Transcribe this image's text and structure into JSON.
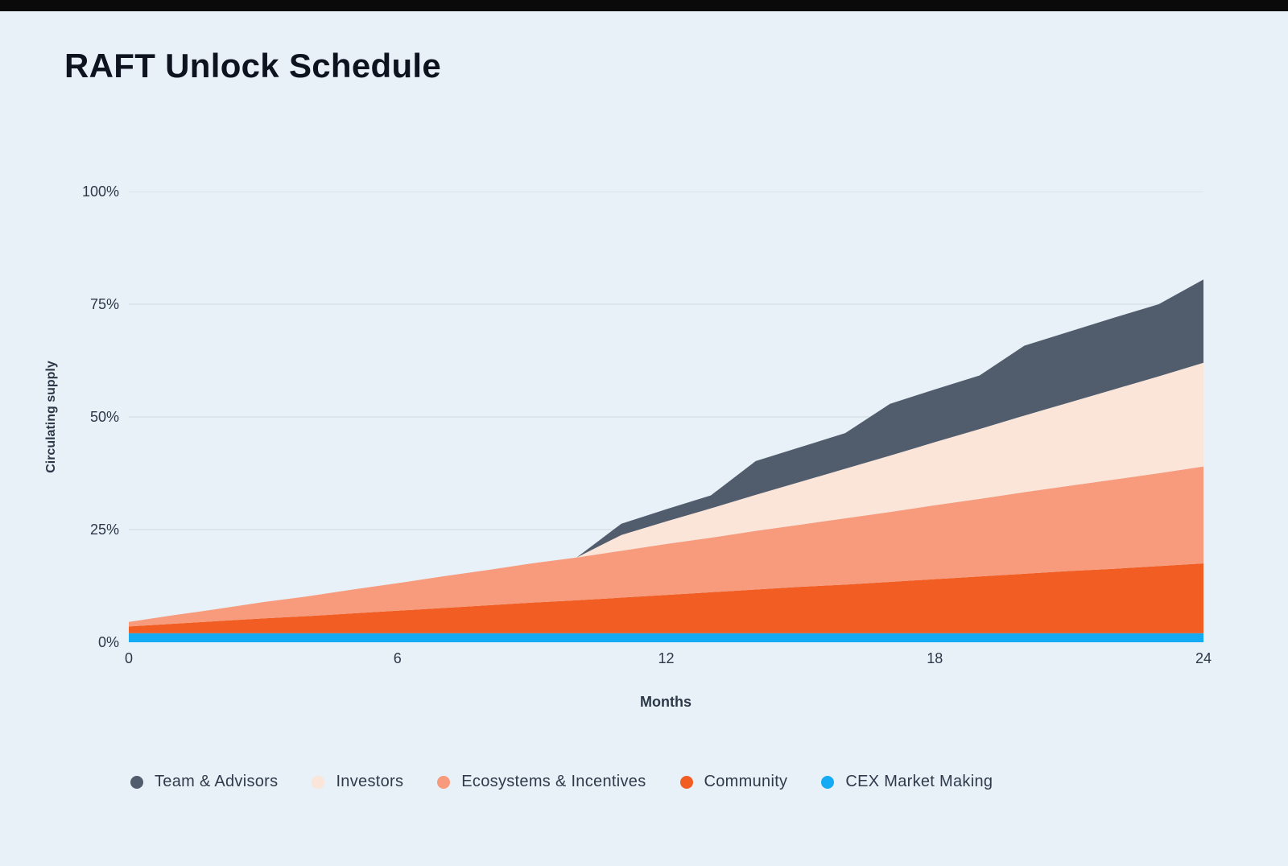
{
  "page": {
    "title": "RAFT Unlock Schedule"
  },
  "chart_data": {
    "type": "area",
    "stacked": true,
    "title": "RAFT Unlock Schedule",
    "xlabel": "Months",
    "ylabel": "Circulating supply",
    "xlim": [
      0,
      24
    ],
    "ylim": [
      0,
      100
    ],
    "grid": "horizontal",
    "legend_position": "bottom",
    "values_unit": "percent of total supply per series (stacked band thickness)",
    "x": [
      0,
      1,
      2,
      3,
      4,
      5,
      6,
      7,
      8,
      9,
      10,
      11,
      12,
      13,
      14,
      15,
      16,
      17,
      18,
      19,
      20,
      21,
      22,
      23,
      24
    ],
    "x_ticks": [
      0,
      6,
      12,
      18,
      24
    ],
    "y_ticks": [
      {
        "label": "0%",
        "value": 0
      },
      {
        "label": "25%",
        "value": 25
      },
      {
        "label": "50%",
        "value": 50
      },
      {
        "label": "75%",
        "value": 75
      },
      {
        "label": "100%",
        "value": 100
      }
    ],
    "series": [
      {
        "id": "cex",
        "name": "CEX Market Making",
        "color": "#14ABF4",
        "values": [
          2,
          2,
          2,
          2,
          2,
          2,
          2,
          2,
          2,
          2,
          2,
          2,
          2,
          2,
          2,
          2,
          2,
          2,
          2,
          2,
          2,
          2,
          2,
          2,
          2
        ]
      },
      {
        "id": "community",
        "name": "Community",
        "color": "#F15D22",
        "values": [
          1.5,
          2.1,
          2.7,
          3.3,
          3.8,
          4.4,
          5,
          5.6,
          6.2,
          6.8,
          7.3,
          7.9,
          8.5,
          9.1,
          9.7,
          10.3,
          10.8,
          11.4,
          12,
          12.6,
          13.2,
          13.8,
          14.3,
          14.9,
          15.5
        ]
      },
      {
        "id": "ecosystems",
        "name": "Ecosystems & Incentives",
        "color": "#F79B7C",
        "values": [
          1,
          1.9,
          2.7,
          3.6,
          4.4,
          5.3,
          6.1,
          7,
          7.8,
          8.7,
          9.5,
          10.4,
          11.3,
          12.1,
          13,
          13.8,
          14.7,
          15.5,
          16.4,
          17.2,
          18.1,
          18.9,
          19.8,
          20.6,
          21.5
        ]
      },
      {
        "id": "investors",
        "name": "Investors",
        "color": "#FBE4D8",
        "values": [
          0,
          0,
          0,
          0,
          0,
          0,
          0,
          0,
          0,
          0,
          0,
          3.5,
          5,
          6.5,
          8,
          9.5,
          11,
          12.5,
          14,
          15.5,
          17,
          18.5,
          20,
          21.5,
          23
        ]
      },
      {
        "id": "team",
        "name": "Team & Advisors",
        "color": "#515D6D",
        "values": [
          0,
          0,
          0,
          0,
          0,
          0,
          0,
          0,
          0,
          0,
          0,
          2.5,
          2.7,
          2.9,
          7.5,
          7.7,
          7.9,
          11.5,
          11.7,
          11.9,
          15.5,
          15.7,
          15.9,
          16,
          18.5
        ]
      }
    ]
  },
  "colors": {
    "background": "#E8F0F8",
    "top_strip": "#0A0A0A",
    "grid": "#D5DDE5",
    "axis_text": "#2C3848",
    "title_text": "#0D1420",
    "legend_text": "#2F3B4B"
  }
}
